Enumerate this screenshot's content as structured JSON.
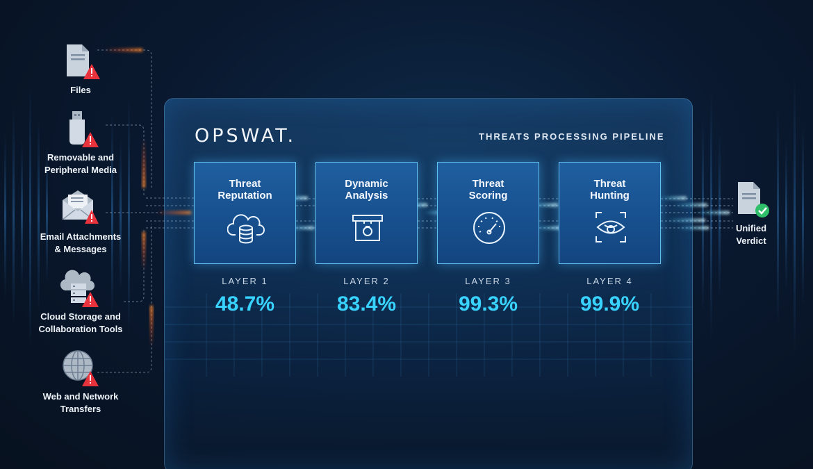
{
  "brand": {
    "logo": "OPSWAT."
  },
  "pipeline": {
    "title": "THREATS PROCESSING PIPELINE",
    "layers": [
      {
        "title_line1": "Threat",
        "title_line2": "Reputation",
        "label": "LAYER 1",
        "percent": "48.7%",
        "icon": "cloud-database-icon"
      },
      {
        "title_line1": "Dynamic",
        "title_line2": "Analysis",
        "label": "LAYER 2",
        "percent": "83.4%",
        "icon": "sandbox-box-icon"
      },
      {
        "title_line1": "Threat",
        "title_line2": "Scoring",
        "label": "LAYER 3",
        "percent": "99.3%",
        "icon": "gauge-icon"
      },
      {
        "title_line1": "Threat",
        "title_line2": "Hunting",
        "label": "LAYER 4",
        "percent": "99.9%",
        "icon": "eye-scan-icon"
      }
    ]
  },
  "sources": [
    {
      "line1": "Files",
      "line2": "",
      "icon": "file-warning-icon"
    },
    {
      "line1": "Removable and",
      "line2": "Peripheral Media",
      "icon": "usb-warning-icon"
    },
    {
      "line1": "Email Attachments",
      "line2": "& Messages",
      "icon": "email-warning-icon"
    },
    {
      "line1": "Cloud Storage and",
      "line2": "Collaboration Tools",
      "icon": "cloud-server-warning-icon"
    },
    {
      "line1": "Web and Network",
      "line2": "Transfers",
      "icon": "globe-warning-icon"
    }
  ],
  "verdict": {
    "line1": "Unified",
    "line2": "Verdict",
    "icon": "file-check-icon"
  },
  "colors": {
    "accent": "#39d3ff",
    "warning": "#e8323c",
    "threat_flow": "#ff6a1a",
    "panel_border": "#6ed2ff"
  }
}
